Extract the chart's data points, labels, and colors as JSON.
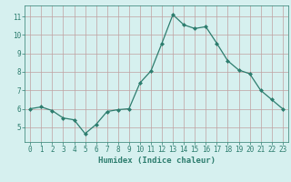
{
  "x": [
    0,
    1,
    2,
    3,
    4,
    5,
    6,
    7,
    8,
    9,
    10,
    11,
    12,
    13,
    14,
    15,
    16,
    17,
    18,
    19,
    20,
    21,
    22,
    23
  ],
  "y": [
    6.0,
    6.1,
    5.9,
    5.5,
    5.4,
    4.65,
    5.15,
    5.85,
    5.95,
    6.0,
    7.4,
    8.05,
    9.55,
    11.1,
    10.55,
    10.35,
    10.45,
    9.55,
    8.6,
    8.1,
    7.9,
    7.0,
    6.5,
    6.0
  ],
  "line_color": "#2d7d6e",
  "marker": "D",
  "marker_size": 2.0,
  "bg_color": "#d6f0ef",
  "grid_color": "#c0a0a0",
  "xlabel": "Humidex (Indice chaleur)",
  "xlim": [
    -0.5,
    23.5
  ],
  "ylim": [
    4.2,
    11.6
  ],
  "yticks": [
    5,
    6,
    7,
    8,
    9,
    10,
    11
  ],
  "xticks": [
    0,
    1,
    2,
    3,
    4,
    5,
    6,
    7,
    8,
    9,
    10,
    11,
    12,
    13,
    14,
    15,
    16,
    17,
    18,
    19,
    20,
    21,
    22,
    23
  ],
  "tick_color": "#2d7d6e",
  "label_fontsize": 6.5,
  "tick_fontsize": 5.5
}
